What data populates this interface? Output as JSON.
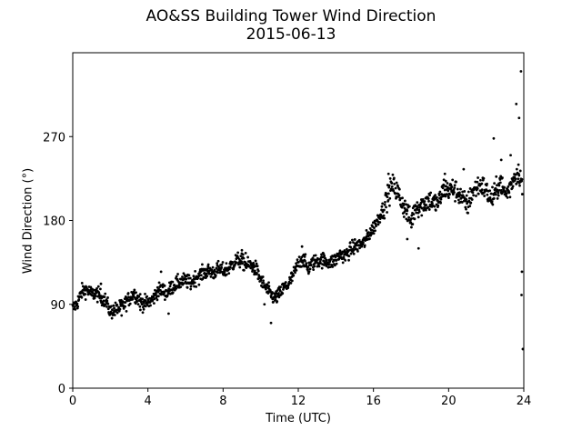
{
  "chart_data": {
    "type": "scatter",
    "title": "AO&SS Building Tower Wind Direction",
    "subtitle": "2015-06-13",
    "xlabel": "Time (UTC)",
    "ylabel": "Wind Direction (°)",
    "xlim": [
      0,
      24
    ],
    "ylim": [
      0,
      360
    ],
    "xticks": [
      0,
      4,
      8,
      12,
      16,
      20,
      24
    ],
    "yticks": [
      0,
      90,
      180,
      270
    ],
    "grid": false,
    "marker_color": "#000000",
    "series": [
      {
        "x": [
          0,
          0.25,
          0.5,
          0.75,
          1.0,
          1.25,
          1.5,
          1.75,
          2.0,
          2.25,
          2.5,
          2.75,
          3.0,
          3.25,
          3.5,
          3.75,
          4.0,
          4.25,
          4.5,
          4.75,
          5.0,
          5.25,
          5.5,
          5.75,
          6.0,
          6.25,
          6.5,
          6.75,
          7.0,
          7.25,
          7.5,
          7.75,
          8.0,
          8.25,
          8.5,
          8.75,
          9.0,
          9.25,
          9.5,
          9.75,
          10.0,
          10.25,
          10.5,
          10.75,
          11.0,
          11.25,
          11.5,
          11.75,
          12.0,
          12.25,
          12.5,
          12.75,
          13.0,
          13.25,
          13.5,
          13.75,
          14.0,
          14.25,
          14.5,
          14.75,
          15.0,
          15.25,
          15.5,
          15.75,
          16.0,
          16.25,
          16.5,
          16.75,
          17.0,
          17.25,
          17.5,
          17.75,
          18.0,
          18.25,
          18.5,
          18.75,
          19.0,
          19.25,
          19.5,
          19.75,
          20.0,
          20.25,
          20.5,
          20.75,
          21.0,
          21.25,
          21.5,
          21.75,
          22.0,
          22.25,
          22.5,
          22.75,
          23.0,
          23.25,
          23.5,
          23.75,
          24.0
        ],
        "y": [
          85,
          92,
          104,
          106,
          101,
          102,
          98,
          94,
          82,
          84,
          86,
          90,
          96,
          102,
          96,
          91,
          92,
          95,
          104,
          106,
          102,
          108,
          112,
          114,
          116,
          112,
          118,
          121,
          124,
          126,
          124,
          128,
          126,
          128,
          133,
          138,
          136,
          132,
          132,
          128,
          116,
          108,
          102,
          96,
          101,
          108,
          112,
          122,
          134,
          140,
          128,
          134,
          137,
          138,
          136,
          135,
          138,
          144,
          142,
          148,
          152,
          154,
          156,
          165,
          172,
          182,
          192,
          205,
          218,
          212,
          200,
          190,
          178,
          196,
          195,
          200,
          202,
          198,
          200,
          215,
          212,
          214,
          210,
          202,
          196,
          210,
          216,
          218,
          212,
          202,
          210,
          222,
          208,
          214,
          228,
          232,
          210
        ]
      },
      {
        "x": [
          1.5,
          2.6,
          3.6,
          4.7,
          5.1,
          9.0,
          9.2,
          10.2,
          10.55,
          12.2,
          14.6,
          16.8,
          17.8,
          18.4,
          19.8,
          20.8,
          22.4,
          22.8,
          23.3,
          23.6,
          23.75,
          23.85,
          23.88,
          23.9,
          23.95
        ],
        "y": [
          112,
          78,
          84,
          125,
          80,
          148,
          145,
          90,
          70,
          152,
          145,
          230,
          160,
          150,
          230,
          235,
          268,
          245,
          250,
          305,
          290,
          340,
          100,
          125,
          42
        ]
      }
    ]
  }
}
